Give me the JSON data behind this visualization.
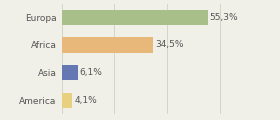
{
  "categories": [
    "Europa",
    "Africa",
    "Asia",
    "America"
  ],
  "values": [
    55.3,
    34.5,
    6.1,
    4.1
  ],
  "labels": [
    "55,3%",
    "34,5%",
    "6,1%",
    "4,1%"
  ],
  "bar_colors": [
    "#a8bf8a",
    "#e8b87a",
    "#6478b4",
    "#e8d080"
  ],
  "background_color": "#f0f0e8",
  "xlim": [
    0,
    70
  ],
  "label_fontsize": 6.5,
  "tick_fontsize": 6.5,
  "bar_height": 0.55
}
